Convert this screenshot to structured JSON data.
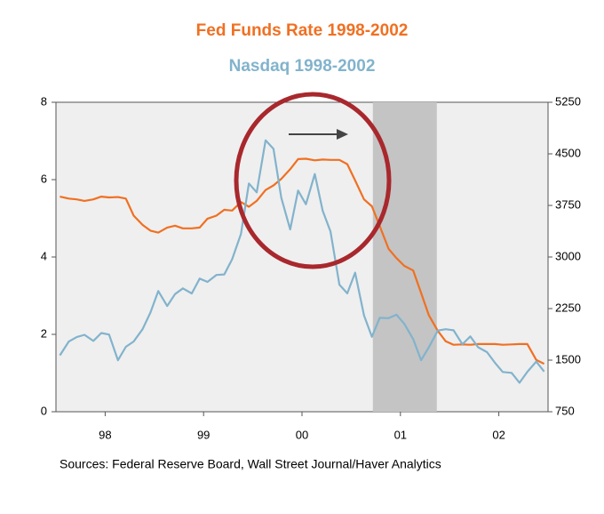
{
  "chart_data": {
    "type": "line",
    "title": "Fed Funds Rate  1998-2002",
    "subtitle": "Nasdaq  1998-2002",
    "source": "Sources:  Federal Reserve Board, Wall Street Journal/Haver Analytics",
    "x": [
      1998.04,
      1998.13,
      1998.21,
      1998.29,
      1998.38,
      1998.46,
      1998.54,
      1998.63,
      1998.71,
      1998.79,
      1998.88,
      1998.96,
      1999.04,
      1999.13,
      1999.21,
      1999.29,
      1999.38,
      1999.46,
      1999.54,
      1999.63,
      1999.71,
      1999.79,
      1999.88,
      1999.96,
      2000.04,
      2000.13,
      2000.21,
      2000.29,
      2000.38,
      2000.46,
      2000.54,
      2000.63,
      2000.71,
      2000.79,
      2000.88,
      2000.96,
      2001.04,
      2001.13,
      2001.21,
      2001.29,
      2001.38,
      2001.46,
      2001.54,
      2001.63,
      2001.71,
      2001.79,
      2001.88,
      2001.96,
      2002.04,
      2002.13,
      2002.21,
      2002.29,
      2002.38,
      2002.46,
      2002.54,
      2002.63,
      2002.71,
      2002.79,
      2002.88,
      2002.96
    ],
    "series": [
      {
        "color": "#f07022",
        "axis": "y",
        "values": [
          5.56,
          5.51,
          5.49,
          5.45,
          5.49,
          5.56,
          5.54,
          5.55,
          5.51,
          5.07,
          4.83,
          4.68,
          4.63,
          4.76,
          4.81,
          4.74,
          4.74,
          4.76,
          4.99,
          5.07,
          5.22,
          5.2,
          5.42,
          5.3,
          5.45,
          5.73,
          5.85,
          6.02,
          6.27,
          6.53,
          6.54,
          6.5,
          6.52,
          6.51,
          6.51,
          6.4,
          5.98,
          5.49,
          5.31,
          4.8,
          4.21,
          3.97,
          3.77,
          3.65,
          3.07,
          2.49,
          2.09,
          1.82,
          1.73,
          1.74,
          1.73,
          1.75,
          1.75,
          1.75,
          1.73,
          1.74,
          1.75,
          1.75,
          1.34,
          1.24
        ]
      },
      {
        "color": "#82b3cc",
        "axis": "y2",
        "values": [
          1570,
          1770,
          1835,
          1868,
          1779,
          1895,
          1872,
          1499,
          1694,
          1771,
          1950,
          2193,
          2505,
          2288,
          2461,
          2543,
          2470,
          2686,
          2638,
          2739,
          2746,
          2966,
          3336,
          4069,
          3940,
          4696,
          4573,
          3861,
          3401,
          3966,
          3767,
          4206,
          3673,
          3370,
          2598,
          2471,
          2773,
          2152,
          1840,
          2116,
          2110,
          2161,
          2027,
          1805,
          1499,
          1690,
          1931,
          1950,
          1934,
          1731,
          1845,
          1688,
          1616,
          1463,
          1328,
          1315,
          1172,
          1330,
          1479,
          1335
        ]
      }
    ],
    "xlim": [
      1998,
      2003
    ],
    "xticks": [
      {
        "value": 1998.5,
        "label": "98"
      },
      {
        "value": 1999.5,
        "label": "99"
      },
      {
        "value": 2000.5,
        "label": "00"
      },
      {
        "value": 2001.5,
        "label": "01"
      },
      {
        "value": 2002.5,
        "label": "02"
      }
    ],
    "ylim": [
      0,
      8
    ],
    "yticks": [
      0,
      2,
      4,
      6,
      8
    ],
    "y2lim": [
      750,
      5250
    ],
    "y2ticks": [
      750,
      1500,
      2250,
      3000,
      3750,
      4500,
      5250
    ],
    "shade": [
      2001.22,
      2001.87
    ]
  }
}
